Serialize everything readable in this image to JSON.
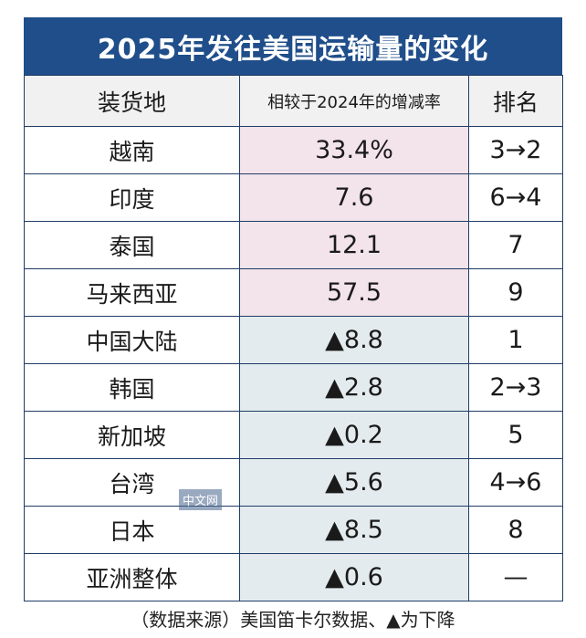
{
  "title": "2025年发往美国运输量的变化",
  "headers": {
    "region": "装货地",
    "change": "相较于2024年的增减率",
    "rank": "排名"
  },
  "rows": [
    {
      "region": "越南",
      "change": "33.4%",
      "rank": "3→2"
    },
    {
      "region": "印度",
      "change": "7.6",
      "rank": "6→4"
    },
    {
      "region": "泰国",
      "change": "12.1",
      "rank": "7"
    },
    {
      "region": "马来西亚",
      "change": "57.5",
      "rank": "9"
    },
    {
      "region": "中国大陆",
      "change": "▲8.8",
      "rank": "1"
    },
    {
      "region": "韩国",
      "change": "▲2.8",
      "rank": "2→3"
    },
    {
      "region": "新加坡",
      "change": "▲0.2",
      "rank": "5"
    },
    {
      "region": "台湾",
      "change": "▲5.6",
      "rank": "4→6"
    },
    {
      "region": "日本",
      "change": "▲8.5",
      "rank": "8"
    },
    {
      "region": "亚洲整体",
      "change": "▲0.6",
      "rank": "—"
    }
  ],
  "watermark": "中文网",
  "footer": "（数据来源）美国笛卡尔数据、▲为下降",
  "colors": {
    "title_bg": "#1f4e8a",
    "increase_bg": "#f3e3ea",
    "decrease_bg": "#e4ebef"
  }
}
